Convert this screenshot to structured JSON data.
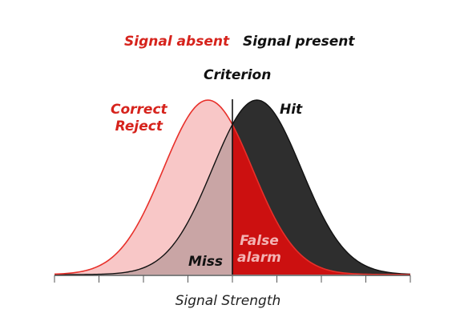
{
  "labels": {
    "signal_absent": "Signal absent",
    "signal_present": "Signal present",
    "criterion": "Criterion",
    "correct_reject_line1": "Correct",
    "correct_reject_line2": "Reject",
    "hit": "Hit",
    "miss": "Miss",
    "false_alarm_line1": "False",
    "false_alarm_line2": "alarm",
    "x_axis": "Signal Strength"
  },
  "colors": {
    "noise_fill": "#f8c7c7",
    "noise_line": "#e8302a",
    "signal_fill": "#2e2e2e",
    "miss_fill": "#c9a5a5",
    "false_alarm_fill": "#cc1010",
    "criterion_line": "#111111",
    "axis": "#555555"
  },
  "model": {
    "noise_mean": -0.55,
    "signal_mean": 0.55,
    "sd": 1,
    "criterion": 0,
    "x_range": [
      -4,
      4
    ]
  }
}
